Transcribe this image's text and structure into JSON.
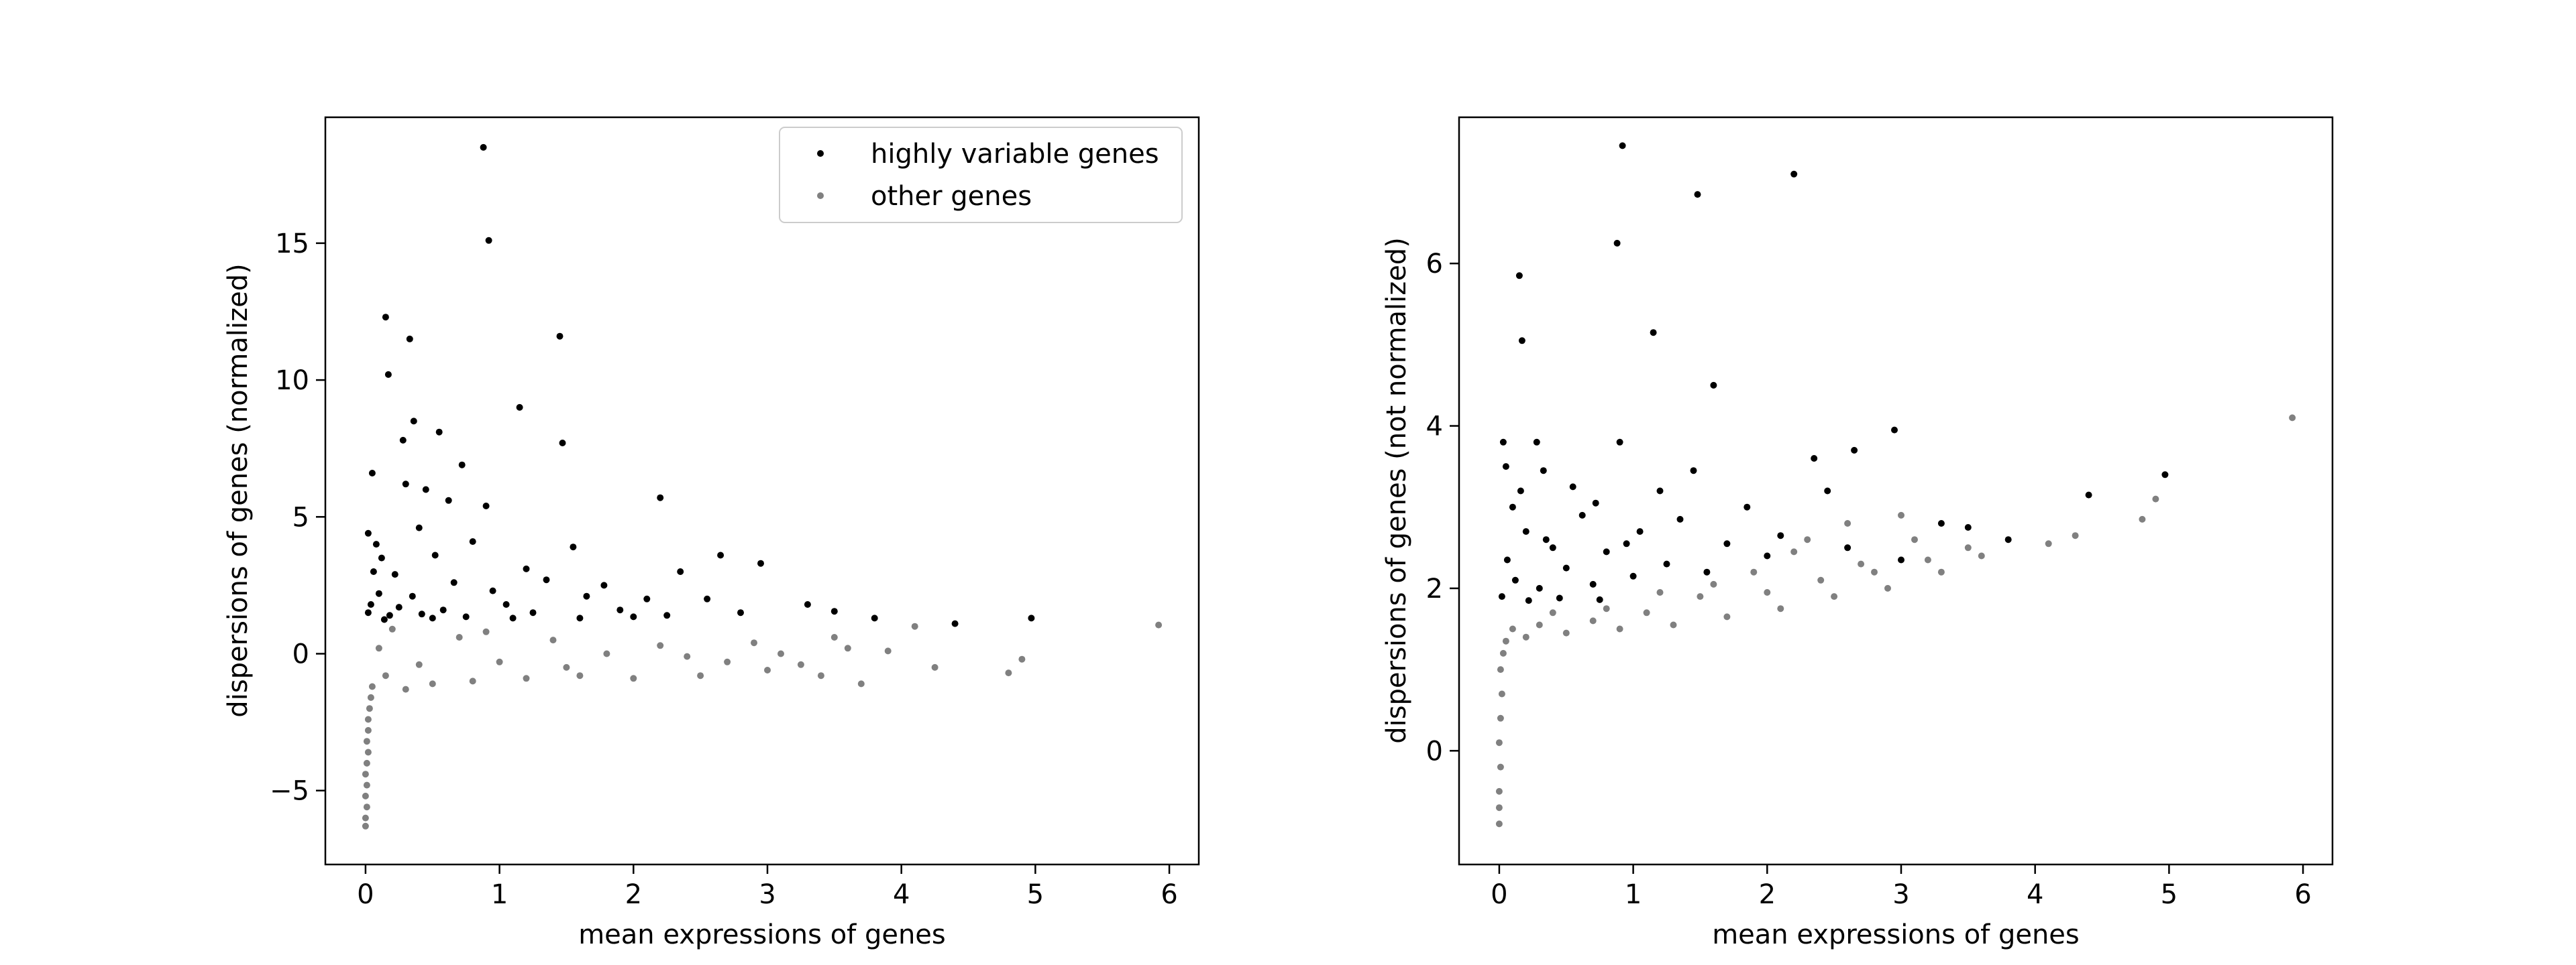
{
  "colors": {
    "highly_variable": "#000000",
    "other": "#808080"
  },
  "chart_data": [
    {
      "type": "scatter",
      "xlabel": "mean expressions of genes",
      "ylabel": "dispersions of genes (normalized)",
      "xlim": [
        -0.3,
        6.22
      ],
      "ylim": [
        -7.7,
        19.6
      ],
      "xticks": [
        0,
        1,
        2,
        3,
        4,
        5,
        6
      ],
      "yticks": [
        -5,
        0,
        5,
        10,
        15
      ],
      "grid": false,
      "legend": {
        "placement": "top-right",
        "entries": [
          "highly variable genes",
          "other genes"
        ]
      },
      "series": [
        {
          "name": "highly variable genes",
          "color": "#000000",
          "points": [
            [
              0.88,
              18.5
            ],
            [
              0.92,
              15.1
            ],
            [
              0.15,
              12.3
            ],
            [
              0.33,
              11.5
            ],
            [
              1.45,
              11.6
            ],
            [
              0.17,
              10.2
            ],
            [
              1.15,
              9.0
            ],
            [
              0.36,
              8.5
            ],
            [
              0.55,
              8.1
            ],
            [
              0.28,
              7.8
            ],
            [
              1.47,
              7.7
            ],
            [
              0.72,
              6.9
            ],
            [
              0.05,
              6.6
            ],
            [
              0.3,
              6.2
            ],
            [
              0.45,
              6.0
            ],
            [
              0.62,
              5.6
            ],
            [
              0.9,
              5.4
            ],
            [
              2.2,
              5.7
            ],
            [
              0.02,
              4.4
            ],
            [
              0.08,
              4.0
            ],
            [
              0.4,
              4.6
            ],
            [
              0.8,
              4.1
            ],
            [
              1.55,
              3.9
            ],
            [
              0.12,
              3.5
            ],
            [
              0.52,
              3.6
            ],
            [
              1.2,
              3.1
            ],
            [
              2.65,
              3.6
            ],
            [
              2.95,
              3.3
            ],
            [
              0.06,
              3.0
            ],
            [
              0.22,
              2.9
            ],
            [
              0.66,
              2.6
            ],
            [
              1.35,
              2.7
            ],
            [
              2.35,
              3.0
            ],
            [
              1.78,
              2.5
            ],
            [
              0.1,
              2.2
            ],
            [
              0.35,
              2.1
            ],
            [
              0.95,
              2.3
            ],
            [
              1.65,
              2.1
            ],
            [
              2.1,
              2.0
            ],
            [
              0.04,
              1.8
            ],
            [
              0.25,
              1.7
            ],
            [
              0.58,
              1.6
            ],
            [
              1.05,
              1.8
            ],
            [
              1.9,
              1.6
            ],
            [
              2.55,
              2.0
            ],
            [
              3.3,
              1.8
            ],
            [
              0.02,
              1.5
            ],
            [
              0.18,
              1.4
            ],
            [
              0.42,
              1.45
            ],
            [
              0.75,
              1.35
            ],
            [
              1.25,
              1.5
            ],
            [
              2.25,
              1.4
            ],
            [
              3.5,
              1.55
            ],
            [
              3.8,
              1.3
            ],
            [
              4.4,
              1.1
            ],
            [
              4.97,
              1.3
            ],
            [
              1.6,
              1.3
            ],
            [
              2.0,
              1.35
            ],
            [
              2.8,
              1.5
            ],
            [
              0.5,
              1.3
            ],
            [
              0.14,
              1.25
            ],
            [
              1.1,
              1.3
            ]
          ]
        },
        {
          "name": "other genes",
          "color": "#808080",
          "points": [
            [
              0.0,
              -6.3
            ],
            [
              0.0,
              -6.0
            ],
            [
              0.01,
              -5.6
            ],
            [
              0.0,
              -5.2
            ],
            [
              0.01,
              -4.8
            ],
            [
              0.0,
              -4.4
            ],
            [
              0.01,
              -4.0
            ],
            [
              0.02,
              -3.6
            ],
            [
              0.01,
              -3.2
            ],
            [
              0.02,
              -2.8
            ],
            [
              0.02,
              -2.4
            ],
            [
              0.03,
              -2.0
            ],
            [
              0.04,
              -1.6
            ],
            [
              0.05,
              -1.2
            ],
            [
              0.3,
              -1.3
            ],
            [
              0.5,
              -1.1
            ],
            [
              0.8,
              -1.0
            ],
            [
              1.2,
              -0.9
            ],
            [
              1.6,
              -0.8
            ],
            [
              2.0,
              -0.9
            ],
            [
              2.5,
              -0.8
            ],
            [
              3.0,
              -0.6
            ],
            [
              3.4,
              -0.8
            ],
            [
              3.7,
              -1.1
            ],
            [
              4.25,
              -0.5
            ],
            [
              4.8,
              -0.7
            ],
            [
              4.9,
              -0.2
            ],
            [
              4.1,
              1.0
            ],
            [
              5.92,
              1.05
            ],
            [
              3.6,
              0.2
            ],
            [
              2.9,
              0.4
            ],
            [
              2.2,
              0.3
            ],
            [
              1.4,
              0.5
            ],
            [
              0.7,
              0.6
            ],
            [
              0.2,
              0.9
            ],
            [
              0.1,
              0.2
            ],
            [
              0.4,
              -0.4
            ],
            [
              1.0,
              -0.3
            ],
            [
              1.8,
              0.0
            ],
            [
              2.7,
              -0.3
            ],
            [
              3.25,
              -0.4
            ],
            [
              3.5,
              0.6
            ],
            [
              2.4,
              -0.1
            ],
            [
              1.5,
              -0.5
            ],
            [
              0.9,
              0.8
            ],
            [
              0.15,
              -0.8
            ],
            [
              3.9,
              0.1
            ],
            [
              3.1,
              0.0
            ]
          ]
        }
      ]
    },
    {
      "type": "scatter",
      "xlabel": "mean expressions of genes",
      "ylabel": "dispersions of genes (not normalized)",
      "xlim": [
        -0.3,
        6.22
      ],
      "ylim": [
        -1.4,
        7.8
      ],
      "xticks": [
        0,
        1,
        2,
        3,
        4,
        5,
        6
      ],
      "yticks": [
        0,
        2,
        4,
        6
      ],
      "grid": false,
      "series": [
        {
          "name": "highly variable genes",
          "color": "#000000",
          "points": [
            [
              0.92,
              7.45
            ],
            [
              2.2,
              7.1
            ],
            [
              1.48,
              6.85
            ],
            [
              0.88,
              6.25
            ],
            [
              0.15,
              5.85
            ],
            [
              0.17,
              5.05
            ],
            [
              1.15,
              5.15
            ],
            [
              1.6,
              4.5
            ],
            [
              2.95,
              3.95
            ],
            [
              0.03,
              3.8
            ],
            [
              0.28,
              3.8
            ],
            [
              0.9,
              3.8
            ],
            [
              2.35,
              3.6
            ],
            [
              0.05,
              3.5
            ],
            [
              0.33,
              3.45
            ],
            [
              1.45,
              3.45
            ],
            [
              2.65,
              3.7
            ],
            [
              0.55,
              3.25
            ],
            [
              1.2,
              3.2
            ],
            [
              2.45,
              3.2
            ],
            [
              0.72,
              3.05
            ],
            [
              1.85,
              3.0
            ],
            [
              4.4,
              3.15
            ],
            [
              4.97,
              3.4
            ],
            [
              0.1,
              3.0
            ],
            [
              0.62,
              2.9
            ],
            [
              1.35,
              2.85
            ],
            [
              3.3,
              2.8
            ],
            [
              0.2,
              2.7
            ],
            [
              1.05,
              2.7
            ],
            [
              2.1,
              2.65
            ],
            [
              3.5,
              2.75
            ],
            [
              0.4,
              2.5
            ],
            [
              0.8,
              2.45
            ],
            [
              1.7,
              2.55
            ],
            [
              2.6,
              2.5
            ],
            [
              0.06,
              2.35
            ],
            [
              0.5,
              2.25
            ],
            [
              1.25,
              2.3
            ],
            [
              3.8,
              2.6
            ],
            [
              0.12,
              2.1
            ],
            [
              0.3,
              2.0
            ],
            [
              0.7,
              2.05
            ],
            [
              1.0,
              2.15
            ],
            [
              0.02,
              1.9
            ],
            [
              0.22,
              1.85
            ],
            [
              0.45,
              1.88
            ],
            [
              0.75,
              1.86
            ],
            [
              1.55,
              2.2
            ],
            [
              2.0,
              2.4
            ],
            [
              3.0,
              2.35
            ],
            [
              0.35,
              2.6
            ],
            [
              0.95,
              2.55
            ],
            [
              0.16,
              3.2
            ]
          ]
        },
        {
          "name": "other genes",
          "color": "#808080",
          "points": [
            [
              0.0,
              -0.9
            ],
            [
              0.0,
              -0.7
            ],
            [
              0.0,
              -0.5
            ],
            [
              0.01,
              -0.2
            ],
            [
              0.0,
              0.1
            ],
            [
              0.01,
              0.4
            ],
            [
              0.02,
              0.7
            ],
            [
              0.01,
              1.0
            ],
            [
              0.03,
              1.2
            ],
            [
              0.05,
              1.35
            ],
            [
              0.2,
              1.4
            ],
            [
              0.5,
              1.45
            ],
            [
              0.9,
              1.5
            ],
            [
              1.3,
              1.55
            ],
            [
              1.7,
              1.65
            ],
            [
              2.1,
              1.75
            ],
            [
              2.5,
              1.9
            ],
            [
              2.9,
              2.0
            ],
            [
              3.3,
              2.2
            ],
            [
              3.6,
              2.4
            ],
            [
              4.1,
              2.55
            ],
            [
              4.3,
              2.65
            ],
            [
              4.8,
              2.85
            ],
            [
              4.9,
              3.1
            ],
            [
              5.92,
              4.1
            ],
            [
              3.1,
              2.6
            ],
            [
              2.7,
              2.3
            ],
            [
              2.3,
              2.6
            ],
            [
              1.9,
              2.2
            ],
            [
              1.5,
              1.9
            ],
            [
              1.1,
              1.7
            ],
            [
              0.7,
              1.6
            ],
            [
              0.3,
              1.55
            ],
            [
              0.1,
              1.5
            ],
            [
              0.4,
              1.7
            ],
            [
              0.8,
              1.75
            ],
            [
              1.2,
              1.95
            ],
            [
              1.6,
              2.05
            ],
            [
              2.0,
              1.95
            ],
            [
              2.4,
              2.1
            ],
            [
              2.8,
              2.2
            ],
            [
              3.2,
              2.35
            ],
            [
              3.5,
              2.5
            ],
            [
              2.6,
              2.8
            ],
            [
              3.0,
              2.9
            ],
            [
              2.2,
              2.45
            ]
          ]
        }
      ]
    }
  ]
}
